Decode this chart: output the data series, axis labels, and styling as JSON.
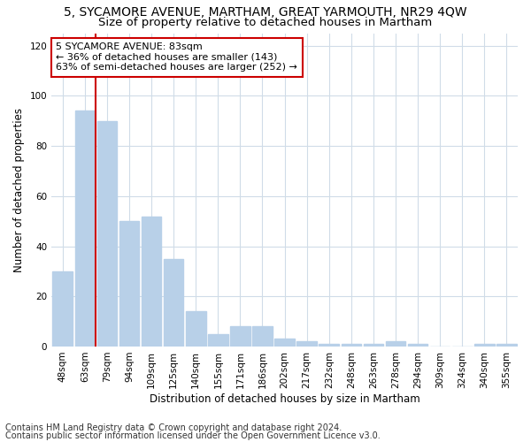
{
  "title": "5, SYCAMORE AVENUE, MARTHAM, GREAT YARMOUTH, NR29 4QW",
  "subtitle": "Size of property relative to detached houses in Martham",
  "xlabel": "Distribution of detached houses by size in Martham",
  "ylabel": "Number of detached properties",
  "categories": [
    "48sqm",
    "63sqm",
    "79sqm",
    "94sqm",
    "109sqm",
    "125sqm",
    "140sqm",
    "155sqm",
    "171sqm",
    "186sqm",
    "202sqm",
    "217sqm",
    "232sqm",
    "248sqm",
    "263sqm",
    "278sqm",
    "294sqm",
    "309sqm",
    "324sqm",
    "340sqm",
    "355sqm"
  ],
  "values": [
    30,
    94,
    90,
    50,
    52,
    35,
    14,
    5,
    8,
    8,
    3,
    2,
    1,
    1,
    1,
    2,
    1,
    0,
    0,
    1,
    1
  ],
  "bar_color": "#b8d0e8",
  "bar_edge_color": "#b8d0e8",
  "vline_color": "#cc0000",
  "vline_x": 1.5,
  "annotation_lines": [
    "5 SYCAMORE AVENUE: 83sqm",
    "← 36% of detached houses are smaller (143)",
    "63% of semi-detached houses are larger (252) →"
  ],
  "annotation_box_facecolor": "white",
  "annotation_box_edgecolor": "#cc0000",
  "ylim": [
    0,
    125
  ],
  "yticks": [
    0,
    20,
    40,
    60,
    80,
    100,
    120
  ],
  "footnote1": "Contains HM Land Registry data © Crown copyright and database right 2024.",
  "footnote2": "Contains public sector information licensed under the Open Government Licence v3.0.",
  "background_color": "#ffffff",
  "plot_bg_color": "#ffffff",
  "grid_color": "#d0dce8",
  "title_fontsize": 10,
  "subtitle_fontsize": 9.5,
  "axis_label_fontsize": 8.5,
  "tick_fontsize": 7.5,
  "annot_fontsize": 8,
  "footnote_fontsize": 7
}
